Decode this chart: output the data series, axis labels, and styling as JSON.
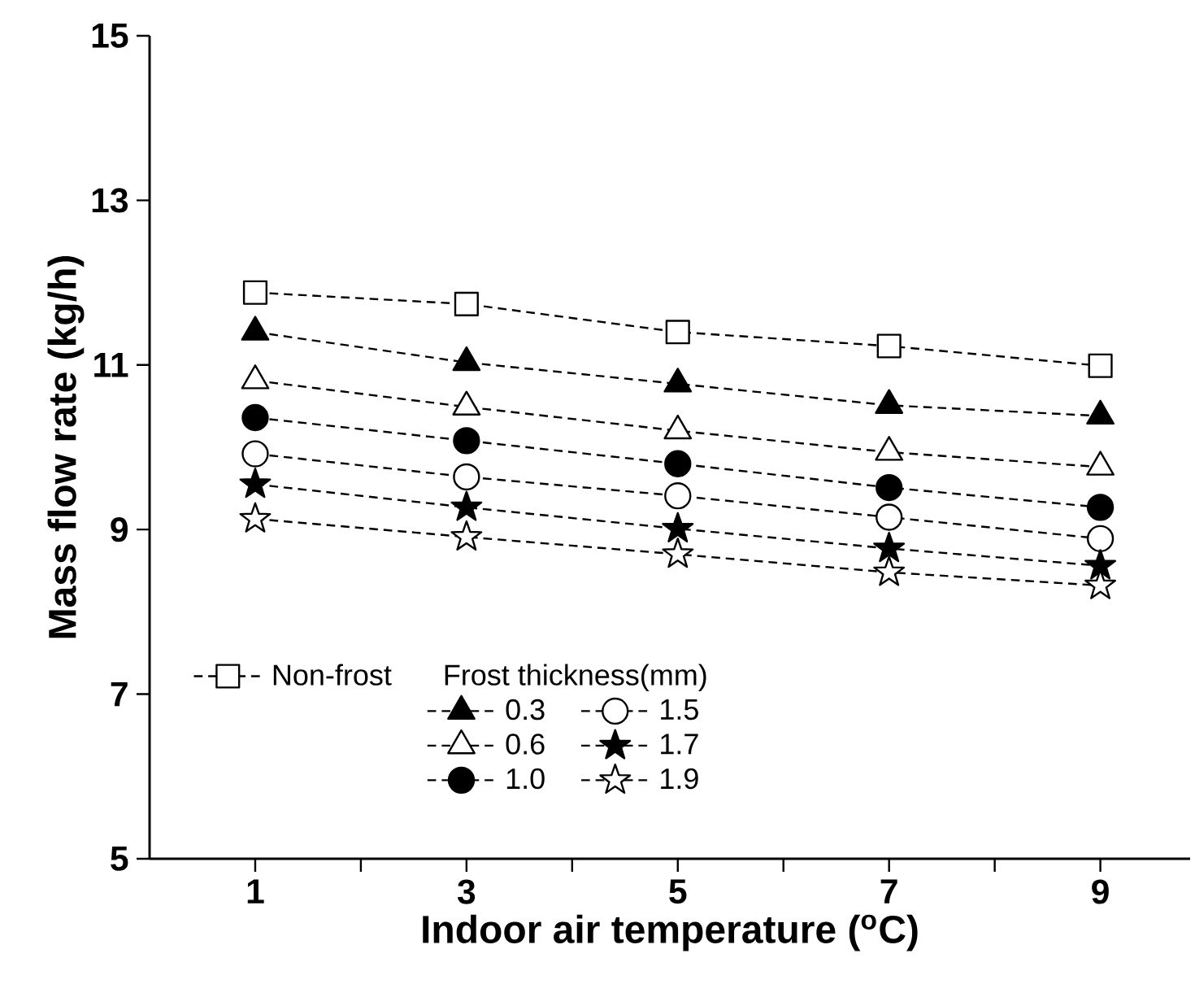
{
  "chart_data": {
    "type": "line",
    "xlabel": "Indoor air temperature ($^{o}$C)",
    "ylabel": "Mass flow rate (kg/h)",
    "legend_title": "Frost thickness(mm)",
    "x": [
      1,
      3,
      5,
      7,
      9
    ],
    "xlim": [
      0,
      9.85
    ],
    "xticks": [
      1,
      {
        "value": 2,
        "label": null
      },
      3,
      {
        "value": 4,
        "label": null
      },
      5,
      {
        "value": 6,
        "label": null
      },
      7,
      {
        "value": 8,
        "label": null
      },
      9
    ],
    "ylim": [
      5,
      15
    ],
    "yticks": [
      5,
      7,
      9,
      11,
      13,
      15
    ],
    "legend": "bottom left",
    "line_style": "dashed",
    "grid": false,
    "series": [
      {
        "name": "Non-frost",
        "color": "#ffffff",
        "marker": "square",
        "values": [
          11.88,
          11.74,
          11.4,
          11.23,
          10.99
        ]
      },
      {
        "name": "0.3",
        "color": "#000000",
        "marker": "triangle",
        "values": [
          11.4,
          11.03,
          10.77,
          10.51,
          10.38
        ]
      },
      {
        "name": "0.6",
        "color": "#ffffff",
        "marker": "triangle",
        "values": [
          10.81,
          10.49,
          10.2,
          9.94,
          9.76
        ]
      },
      {
        "name": "1.0",
        "color": "#000000",
        "marker": "circle",
        "values": [
          10.36,
          10.08,
          9.8,
          9.51,
          9.27
        ]
      },
      {
        "name": "1.5",
        "color": "#ffffff",
        "marker": "circle",
        "values": [
          9.92,
          9.64,
          9.41,
          9.15,
          8.89
        ]
      },
      {
        "name": "1.7",
        "color": "#000000",
        "marker": "star",
        "values": [
          9.55,
          9.27,
          9.01,
          8.77,
          8.56
        ]
      },
      {
        "name": "1.9",
        "color": "#ffffff",
        "marker": "star",
        "values": [
          9.13,
          8.91,
          8.7,
          8.48,
          8.32
        ]
      }
    ]
  }
}
